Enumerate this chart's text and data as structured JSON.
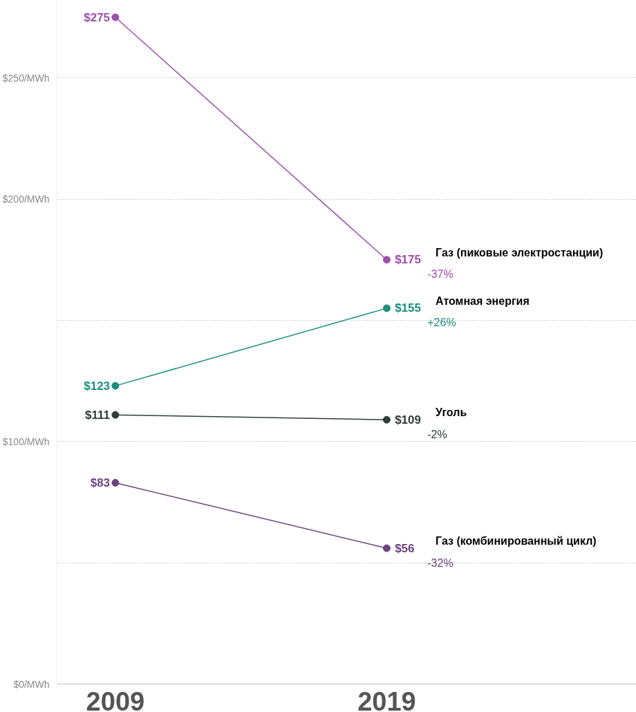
{
  "chart_data": {
    "type": "line",
    "categories": [
      "2009",
      "2019"
    ],
    "series": [
      {
        "name": "Газ (пиковые электростанции)",
        "color": "#9c4fab",
        "values": [
          275,
          175
        ],
        "value_labels": [
          "$275",
          "$175"
        ]
      },
      {
        "name": "Атомная энергия",
        "color": "#1a8f7d",
        "values": [
          123,
          155
        ],
        "value_labels": [
          "$123",
          "$155"
        ]
      },
      {
        "name": "Уголь",
        "color": "#2f3d37",
        "values": [
          111,
          109
        ],
        "value_labels": [
          "$111",
          "$109"
        ]
      },
      {
        "name": "Газ (комбинированный цикл)",
        "color": "#6c4380",
        "values": [
          83,
          56
        ],
        "value_labels": [
          "$83",
          "$56"
        ]
      }
    ],
    "annotations": [
      "-37%",
      "+26%",
      "-2%",
      "-32%"
    ],
    "ylim": [
      0,
      282
    ],
    "yticks": [
      {
        "value": 0,
        "label": "$0/MWh"
      },
      {
        "value": 50,
        "label": null
      },
      {
        "value": 100,
        "label": "$100/MWh"
      },
      {
        "value": 150,
        "label": null
      },
      {
        "value": 200,
        "label": "$200/MWh"
      },
      {
        "value": 250,
        "label": "$250/MWh"
      }
    ],
    "grid": "y",
    "marker": "circle",
    "line_style": "solid"
  }
}
